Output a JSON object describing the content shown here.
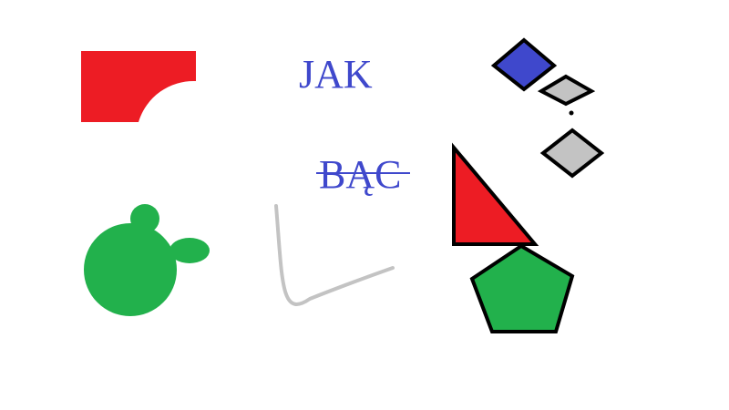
{
  "words": {
    "first": "JAK",
    "second": "BĄC"
  },
  "colors": {
    "background": "#ffffff",
    "red": "#ed1c24",
    "green": "#22b14c",
    "blue": "#3f48cc",
    "gray": "#c3c3c3",
    "text": "#3f48cc",
    "outline": "#000000"
  },
  "shapes": {
    "red_quarter_cut_rectangle": "red",
    "green_blob": "green",
    "gray_curve": "gray",
    "red_triangle": "red",
    "green_pentagon": "green",
    "blue_diamond": "blue",
    "gray_diamonds": [
      "gray",
      "gray"
    ]
  },
  "second_word_struck_through": true
}
